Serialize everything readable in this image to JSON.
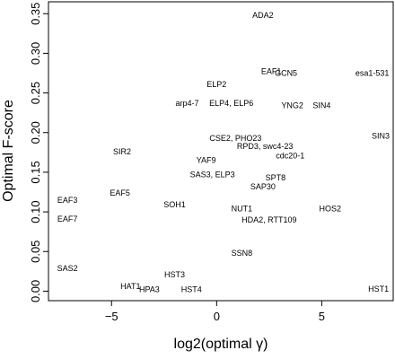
{
  "chart_data": {
    "type": "scatter",
    "title": "",
    "xlabel": "log2(optimal γ)",
    "ylabel": "Optimal F-score",
    "xlim": [
      -8,
      8.4
    ],
    "ylim": [
      -0.012,
      0.365
    ],
    "x_ticks": [
      -5,
      0,
      5
    ],
    "y_ticks": [
      0.0,
      0.05,
      0.1,
      0.15,
      0.2,
      0.25,
      0.3,
      0.35
    ],
    "x_tick_labels": [
      "−5",
      "0",
      "5"
    ],
    "y_tick_labels": [
      "0.00",
      "0.05",
      "0.10",
      "0.15",
      "0.20",
      "0.25",
      "0.30",
      "0.35"
    ],
    "grid": false,
    "marker": "text-label",
    "points": [
      {
        "label": "ADA2",
        "x": 2.2,
        "y": 0.348
      },
      {
        "label": "EAF1",
        "x": 2.6,
        "y": 0.277
      },
      {
        "label": "GCN5",
        "x": 3.3,
        "y": 0.275
      },
      {
        "label": "esa1-531",
        "x": 7.4,
        "y": 0.275
      },
      {
        "label": "ELP2",
        "x": 0.0,
        "y": 0.261
      },
      {
        "label": "arp4-7",
        "x": -1.4,
        "y": 0.237
      },
      {
        "label": "ELP4, ELP6",
        "x": 0.7,
        "y": 0.237
      },
      {
        "label": "YNG2",
        "x": 3.6,
        "y": 0.234
      },
      {
        "label": "SIN4",
        "x": 5.0,
        "y": 0.234
      },
      {
        "label": "SIN3",
        "x": 7.8,
        "y": 0.196
      },
      {
        "label": "SIR2",
        "x": -4.5,
        "y": 0.176
      },
      {
        "label": "CSE2, PHO23",
        "x": 0.9,
        "y": 0.193
      },
      {
        "label": "RPD3, swc4-23",
        "x": 2.3,
        "y": 0.183
      },
      {
        "label": "cdc20-1",
        "x": 3.5,
        "y": 0.171
      },
      {
        "label": "YAF9",
        "x": -0.5,
        "y": 0.165
      },
      {
        "label": "SAS3, ELP3",
        "x": -0.2,
        "y": 0.147
      },
      {
        "label": "SPT8",
        "x": 2.8,
        "y": 0.143
      },
      {
        "label": "SAP30",
        "x": 2.2,
        "y": 0.132
      },
      {
        "label": "EAF3",
        "x": -7.1,
        "y": 0.115
      },
      {
        "label": "EAF5",
        "x": -4.6,
        "y": 0.124
      },
      {
        "label": "SOH1",
        "x": -2.0,
        "y": 0.109
      },
      {
        "label": "NUT1",
        "x": 1.2,
        "y": 0.104
      },
      {
        "label": "HOS2",
        "x": 5.4,
        "y": 0.104
      },
      {
        "label": "EAF7",
        "x": -7.1,
        "y": 0.091
      },
      {
        "label": "HDA2, RTT109",
        "x": 2.5,
        "y": 0.09
      },
      {
        "label": "SSN8",
        "x": 1.2,
        "y": 0.048
      },
      {
        "label": "SAS2",
        "x": -7.1,
        "y": 0.029
      },
      {
        "label": "HST3",
        "x": -2.0,
        "y": 0.021
      },
      {
        "label": "HAT1",
        "x": -4.1,
        "y": 0.006
      },
      {
        "label": "HPA3",
        "x": -3.2,
        "y": 0.002
      },
      {
        "label": "HST4",
        "x": -1.2,
        "y": 0.002
      },
      {
        "label": "HST1",
        "x": 7.7,
        "y": 0.003
      }
    ]
  }
}
